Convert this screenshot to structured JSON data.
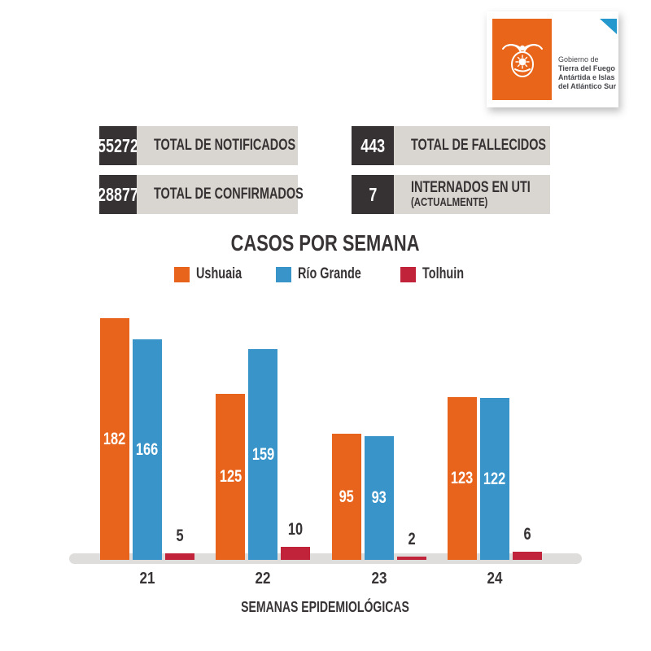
{
  "logo": {
    "org_prefix": "Gobierno de",
    "org_line1": "Tierra del Fuego",
    "org_line2": "Antártida e Islas",
    "org_line3": "del Atlántico Sur",
    "emblem_icon": "coat-of-arms-albatross",
    "box_color": "#e8651a",
    "corner_fold_color": "#2599cd"
  },
  "stats": [
    {
      "value": "55272",
      "label": "TOTAL DE NOTIFICADOS"
    },
    {
      "value": "28877",
      "label": "TOTAL DE CONFIRMADOS"
    },
    {
      "value": "443",
      "label": "TOTAL DE FALLECIDOS"
    },
    {
      "value": "7",
      "label": "INTERNADOS EN UTI",
      "sublabel": "(ACTUALMENTE)"
    }
  ],
  "colors": {
    "dark": "#363233",
    "light_box": "#d9d6d1",
    "axis_strip": "#dedddb",
    "ushuaia_orange": "#e8641c",
    "rio_grande_blue": "#3894c9",
    "tolhuin_red": "#c1233a"
  },
  "chart_data": {
    "type": "bar",
    "title": "CASOS POR SEMANA",
    "xlabel": "SEMANAS EPIDEMIOLÓGICAS",
    "ylabel": "",
    "categories": [
      "21",
      "22",
      "23",
      "24"
    ],
    "series": [
      {
        "name": "Ushuaia",
        "color": "#e8641c",
        "values": [
          182,
          125,
          95,
          123
        ]
      },
      {
        "name": "Río Grande",
        "color": "#3894c9",
        "values": [
          166,
          159,
          93,
          122
        ]
      },
      {
        "name": "Tolhuin",
        "color": "#c1233a",
        "values": [
          5,
          10,
          2,
          6
        ]
      }
    ],
    "ylim": [
      0,
      190
    ],
    "grid": false,
    "legend_position": "top",
    "value_labels": true
  }
}
